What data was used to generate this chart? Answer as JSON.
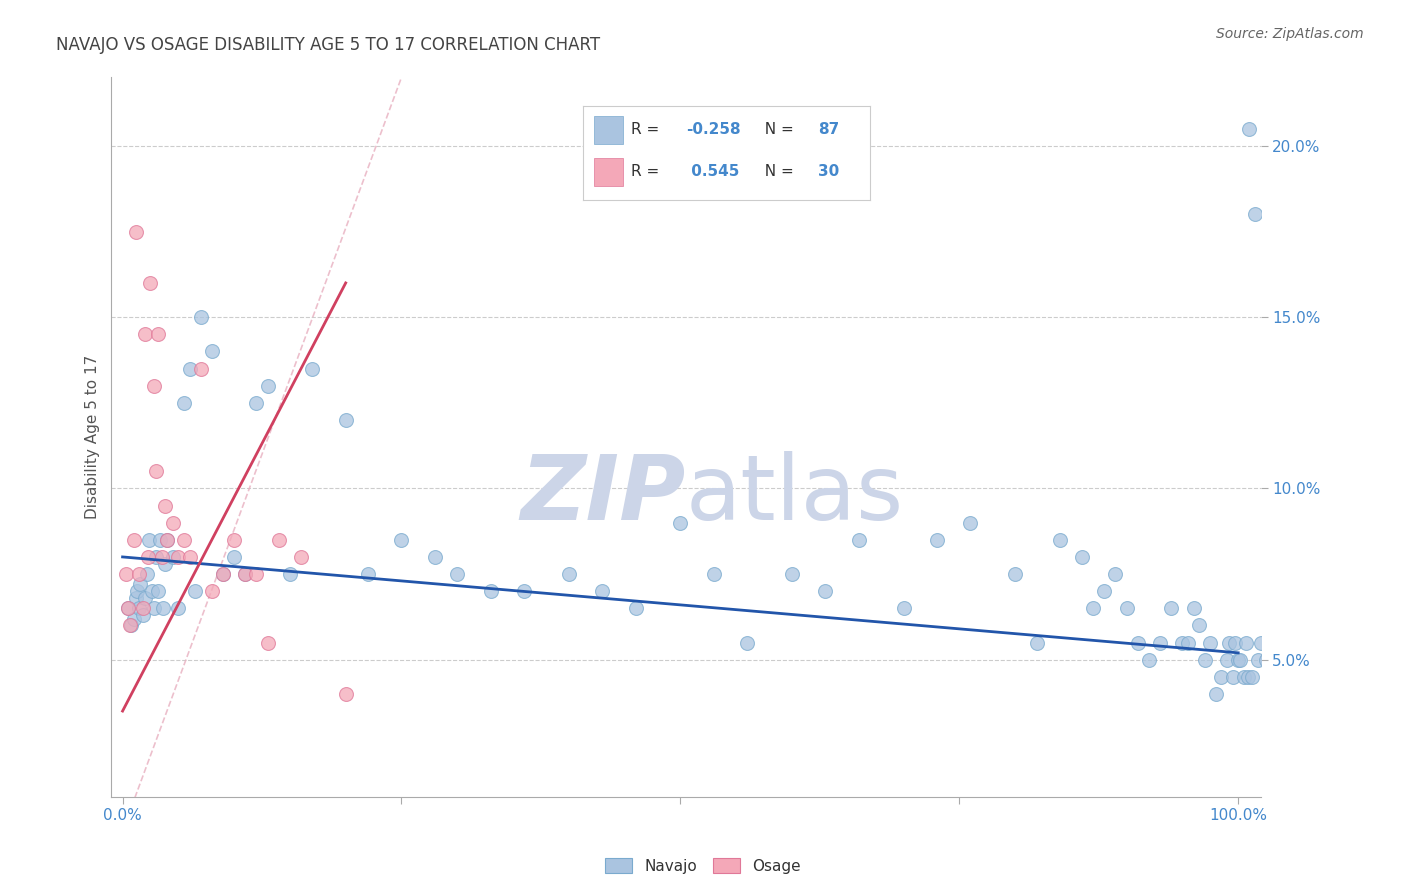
{
  "title": "NAVAJO VS OSAGE DISABILITY AGE 5 TO 17 CORRELATION CHART",
  "source": "Source: ZipAtlas.com",
  "ylabel": "Disability Age 5 to 17",
  "x_min": 0.0,
  "x_max": 100.0,
  "y_min": 1.0,
  "y_max": 22.0,
  "y_ticks": [
    5.0,
    10.0,
    15.0,
    20.0
  ],
  "navajo_R": -0.258,
  "navajo_N": 87,
  "osage_R": 0.545,
  "osage_N": 30,
  "navajo_color": "#aac4e0",
  "navajo_edge": "#7aaace",
  "osage_color": "#f4a8b8",
  "osage_edge": "#e07898",
  "navajo_line_color": "#2255aa",
  "osage_line_color": "#d04060",
  "diag_line_color": "#e8b0c0",
  "background_color": "#ffffff",
  "grid_color": "#cccccc",
  "watermark_color": "#ccd5e8",
  "tick_color": "#4488cc",
  "label_color": "#555555",
  "title_color": "#444444",
  "navajo_x": [
    0.5,
    0.8,
    1.0,
    1.2,
    1.3,
    1.5,
    1.6,
    1.8,
    2.0,
    2.2,
    2.4,
    2.6,
    2.8,
    3.0,
    3.2,
    3.4,
    3.6,
    3.8,
    4.0,
    4.5,
    5.0,
    5.5,
    6.0,
    6.5,
    7.0,
    8.0,
    9.0,
    10.0,
    11.0,
    12.0,
    13.0,
    15.0,
    17.0,
    20.0,
    22.0,
    25.0,
    28.0,
    30.0,
    33.0,
    36.0,
    40.0,
    43.0,
    46.0,
    50.0,
    53.0,
    56.0,
    60.0,
    63.0,
    66.0,
    70.0,
    73.0,
    76.0,
    80.0,
    82.0,
    84.0,
    86.0,
    87.0,
    88.0,
    89.0,
    90.0,
    91.0,
    92.0,
    93.0,
    94.0,
    95.0,
    95.5,
    96.0,
    96.5,
    97.0,
    97.5,
    98.0,
    98.5,
    99.0,
    99.2,
    99.5,
    99.7,
    100.0,
    100.2,
    100.5,
    100.7,
    100.9,
    101.0,
    101.2,
    101.5,
    101.8,
    102.0,
    102.5
  ],
  "navajo_y": [
    6.5,
    6.0,
    6.2,
    6.8,
    7.0,
    6.5,
    7.2,
    6.3,
    6.8,
    7.5,
    8.5,
    7.0,
    6.5,
    8.0,
    7.0,
    8.5,
    6.5,
    7.8,
    8.5,
    8.0,
    6.5,
    12.5,
    13.5,
    7.0,
    15.0,
    14.0,
    7.5,
    8.0,
    7.5,
    12.5,
    13.0,
    7.5,
    13.5,
    12.0,
    7.5,
    8.5,
    8.0,
    7.5,
    7.0,
    7.0,
    7.5,
    7.0,
    6.5,
    9.0,
    7.5,
    5.5,
    7.5,
    7.0,
    8.5,
    6.5,
    8.5,
    9.0,
    7.5,
    5.5,
    8.5,
    8.0,
    6.5,
    7.0,
    7.5,
    6.5,
    5.5,
    5.0,
    5.5,
    6.5,
    5.5,
    5.5,
    6.5,
    6.0,
    5.0,
    5.5,
    4.0,
    4.5,
    5.0,
    5.5,
    4.5,
    5.5,
    5.0,
    5.0,
    4.5,
    5.5,
    4.5,
    20.5,
    4.5,
    18.0,
    5.0,
    5.5,
    5.0
  ],
  "osage_x": [
    0.3,
    0.5,
    0.7,
    1.0,
    1.2,
    1.5,
    1.8,
    2.0,
    2.3,
    2.5,
    2.8,
    3.0,
    3.2,
    3.5,
    3.8,
    4.0,
    4.5,
    5.0,
    5.5,
    6.0,
    7.0,
    8.0,
    9.0,
    10.0,
    11.0,
    12.0,
    13.0,
    14.0,
    16.0,
    20.0
  ],
  "osage_y": [
    7.5,
    6.5,
    6.0,
    8.5,
    17.5,
    7.5,
    6.5,
    14.5,
    8.0,
    16.0,
    13.0,
    10.5,
    14.5,
    8.0,
    9.5,
    8.5,
    9.0,
    8.0,
    8.5,
    8.0,
    13.5,
    7.0,
    7.5,
    8.5,
    7.5,
    7.5,
    5.5,
    8.5,
    8.0,
    4.0
  ],
  "navajo_trend_x0": 0.0,
  "navajo_trend_y0": 8.0,
  "navajo_trend_x1": 100.0,
  "navajo_trend_y1": 5.2,
  "osage_trend_x0": 0.0,
  "osage_trend_y0": 3.5,
  "osage_trend_x1": 20.0,
  "osage_trend_y1": 16.0
}
